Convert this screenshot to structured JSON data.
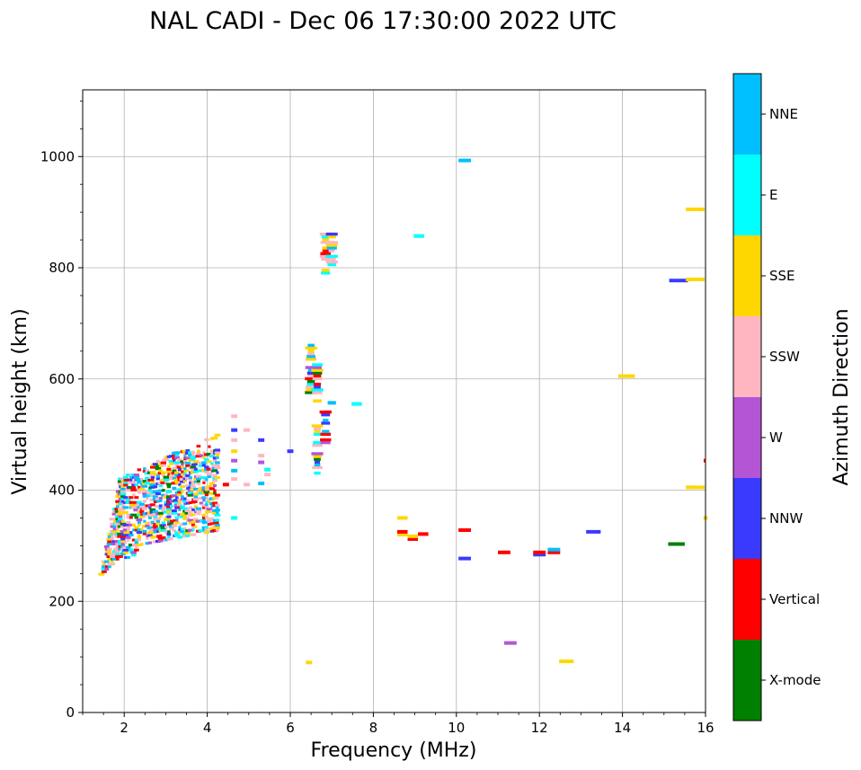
{
  "chart_data": {
    "type": "scatter",
    "title": "NAL CADI - Dec 06 17:30:00 2022 UTC",
    "xlabel": "Frequency (MHz)",
    "ylabel": "Virtual height (km)",
    "xlim": [
      1,
      16
    ],
    "ylim": [
      0,
      1120
    ],
    "grid": true,
    "x_ticks": [
      2,
      4,
      6,
      8,
      10,
      12,
      14,
      16
    ],
    "x_tick_labels": [
      "2",
      "4",
      "6",
      "8",
      "10",
      "12",
      "14",
      "16"
    ],
    "y_ticks": [
      0,
      200,
      400,
      600,
      800,
      1000
    ],
    "y_tick_labels": [
      "0",
      "200",
      "400",
      "600",
      "800",
      "1000"
    ],
    "colorbar": {
      "label": "Azimuth Direction",
      "categories": [
        {
          "name": "X-mode",
          "color": "#008000"
        },
        {
          "name": "Vertical",
          "color": "#ff0000"
        },
        {
          "name": "NNW",
          "color": "#3a3aff"
        },
        {
          "name": "W",
          "color": "#b455d6"
        },
        {
          "name": "SSW",
          "color": "#ffb6c1"
        },
        {
          "name": "SSE",
          "color": "#ffd700"
        },
        {
          "name": "E",
          "color": "#00ffff"
        },
        {
          "name": "NNE",
          "color": "#00bfff"
        }
      ]
    },
    "segments": [
      {
        "f": 6.45,
        "h": 90,
        "w": 0.15,
        "c": "SSE"
      },
      {
        "f": 11.3,
        "h": 125,
        "w": 0.3,
        "c": "W"
      },
      {
        "f": 12.65,
        "h": 92,
        "w": 0.35,
        "c": "SSE"
      },
      {
        "f": 15.3,
        "h": 303,
        "w": 0.4,
        "c": "X-mode"
      },
      {
        "f": 13.3,
        "h": 325,
        "w": 0.35,
        "c": "NNW"
      },
      {
        "f": 10.2,
        "h": 277,
        "w": 0.3,
        "c": "NNW"
      },
      {
        "f": 10.2,
        "h": 328,
        "w": 0.3,
        "c": "Vertical"
      },
      {
        "f": 11.15,
        "h": 288,
        "w": 0.3,
        "c": "Vertical"
      },
      {
        "f": 12.0,
        "h": 284,
        "w": 0.3,
        "c": "NNW"
      },
      {
        "f": 12.0,
        "h": 288,
        "w": 0.3,
        "c": "Vertical"
      },
      {
        "f": 12.35,
        "h": 288,
        "w": 0.3,
        "c": "Vertical"
      },
      {
        "f": 12.35,
        "h": 293,
        "w": 0.3,
        "c": "NNE"
      },
      {
        "f": 8.7,
        "h": 320,
        "w": 0.25,
        "c": "SSE"
      },
      {
        "f": 8.7,
        "h": 325,
        "w": 0.25,
        "c": "Vertical"
      },
      {
        "f": 8.7,
        "h": 350,
        "w": 0.25,
        "c": "SSE"
      },
      {
        "f": 8.95,
        "h": 312,
        "w": 0.25,
        "c": "Vertical"
      },
      {
        "f": 8.95,
        "h": 317,
        "w": 0.25,
        "c": "SSE"
      },
      {
        "f": 9.2,
        "h": 321,
        "w": 0.25,
        "c": "Vertical"
      },
      {
        "f": 9.1,
        "h": 857,
        "w": 0.25,
        "c": "E"
      },
      {
        "f": 10.2,
        "h": 993,
        "w": 0.3,
        "c": "NNE"
      },
      {
        "f": 14.1,
        "h": 605,
        "w": 0.4,
        "c": "SSE"
      },
      {
        "f": 15.35,
        "h": 777,
        "w": 0.45,
        "c": "NNW"
      },
      {
        "f": 15.75,
        "h": 779,
        "w": 0.45,
        "c": "SSE"
      },
      {
        "f": 15.75,
        "h": 905,
        "w": 0.45,
        "c": "SSE"
      },
      {
        "f": 15.75,
        "h": 405,
        "w": 0.45,
        "c": "SSE"
      },
      {
        "f": 16.0,
        "h": 350,
        "w": 0.1,
        "c": "SSE"
      },
      {
        "f": 15.98,
        "h": 453,
        "w": 0.05,
        "c": "Vertical"
      },
      {
        "f": 7.6,
        "h": 555,
        "w": 0.25,
        "c": "E"
      },
      {
        "f": 7.0,
        "h": 557,
        "w": 0.2,
        "c": "NNE"
      },
      {
        "f": 6.0,
        "h": 470,
        "w": 0.15,
        "c": "NNW"
      },
      {
        "f": 5.3,
        "h": 490,
        "w": 0.15,
        "c": "NNW"
      },
      {
        "f": 5.3,
        "h": 462,
        "w": 0.15,
        "c": "SSW"
      },
      {
        "f": 5.3,
        "h": 450,
        "w": 0.15,
        "c": "W"
      },
      {
        "f": 5.45,
        "h": 437,
        "w": 0.15,
        "c": "E"
      },
      {
        "f": 5.45,
        "h": 428,
        "w": 0.15,
        "c": "SSW"
      },
      {
        "f": 5.3,
        "h": 412,
        "w": 0.15,
        "c": "NNE"
      },
      {
        "f": 4.65,
        "h": 533,
        "w": 0.15,
        "c": "SSW"
      },
      {
        "f": 4.65,
        "h": 508,
        "w": 0.15,
        "c": "NNW"
      },
      {
        "f": 4.65,
        "h": 490,
        "w": 0.15,
        "c": "SSW"
      },
      {
        "f": 4.65,
        "h": 470,
        "w": 0.15,
        "c": "SSE"
      },
      {
        "f": 4.65,
        "h": 453,
        "w": 0.15,
        "c": "W"
      },
      {
        "f": 4.65,
        "h": 435,
        "w": 0.15,
        "c": "NNE"
      },
      {
        "f": 4.65,
        "h": 420,
        "w": 0.15,
        "c": "SSW"
      },
      {
        "f": 4.65,
        "h": 350,
        "w": 0.15,
        "c": "E"
      },
      {
        "f": 4.95,
        "h": 508,
        "w": 0.15,
        "c": "SSW"
      },
      {
        "f": 4.95,
        "h": 410,
        "w": 0.15,
        "c": "SSW"
      },
      {
        "f": 4.45,
        "h": 410,
        "w": 0.15,
        "c": "Vertical"
      }
    ]
  }
}
